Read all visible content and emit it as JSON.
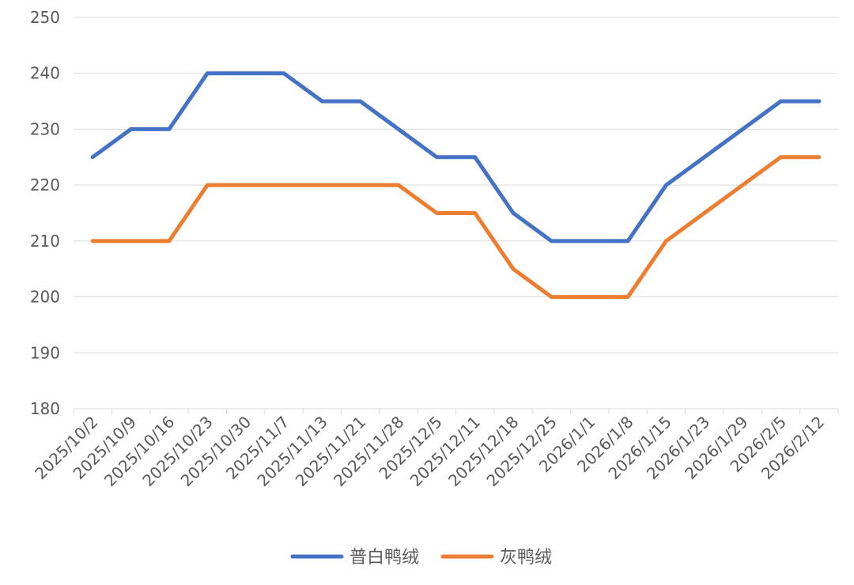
{
  "chart_data": {
    "type": "line",
    "categories": [
      "2025/10/2",
      "2025/10/9",
      "2025/10/16",
      "2025/10/23",
      "2025/10/30",
      "2025/11/7",
      "2025/11/13",
      "2025/11/21",
      "2025/11/28",
      "2025/12/5",
      "2025/12/11",
      "2025/12/18",
      "2025/12/25",
      "2026/1/1",
      "2026/1/8",
      "2026/1/15",
      "2026/1/23",
      "2026/1/29",
      "2026/2/5",
      "2026/2/12"
    ],
    "series": [
      {
        "name": "普白鸭绒",
        "color": "#4472C4",
        "values": [
          225,
          230,
          230,
          240,
          240,
          240,
          235,
          235,
          230,
          225,
          225,
          215,
          210,
          210,
          210,
          220,
          225,
          230,
          235,
          235
        ]
      },
      {
        "name": "灰鸭绒",
        "color": "#ED7D31",
        "values": [
          210,
          210,
          210,
          220,
          220,
          220,
          220,
          220,
          220,
          215,
          215,
          205,
          200,
          200,
          200,
          210,
          215,
          220,
          225,
          225
        ]
      }
    ],
    "ylim": [
      180,
      250
    ],
    "yticks": [
      180,
      190,
      200,
      210,
      220,
      230,
      240,
      250
    ],
    "grid": true,
    "legend": "bottom"
  }
}
